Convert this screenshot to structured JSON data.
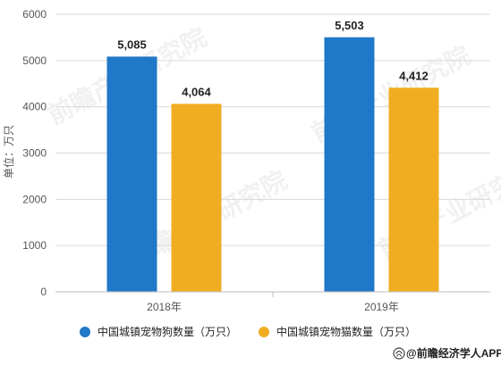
{
  "chart_data": {
    "type": "bar",
    "categories": [
      "2018年",
      "2019年"
    ],
    "series": [
      {
        "name": "中国城镇宠物狗数量（万只）",
        "values": [
          5085,
          5503
        ],
        "value_labels": [
          "5,085",
          "5,503"
        ],
        "color": "#1f78c8"
      },
      {
        "name": "中国城镇宠物猫数量（万只）",
        "values": [
          4064,
          4412
        ],
        "value_labels": [
          "4,064",
          "4,412"
        ],
        "color": "#f0ad22"
      }
    ],
    "ylabel": "单位：万只",
    "ylim": [
      0,
      6000
    ],
    "yticks": [
      0,
      1000,
      2000,
      3000,
      4000,
      5000,
      6000
    ],
    "ytick_labels": [
      "0",
      "1000",
      "2000",
      "3000",
      "4000",
      "5000",
      "6000"
    ],
    "grid": true,
    "legend_position": "bottom"
  },
  "branding": {
    "watermark": "前瞻产业研究院",
    "footer": "@前瞻经济学人APP"
  }
}
